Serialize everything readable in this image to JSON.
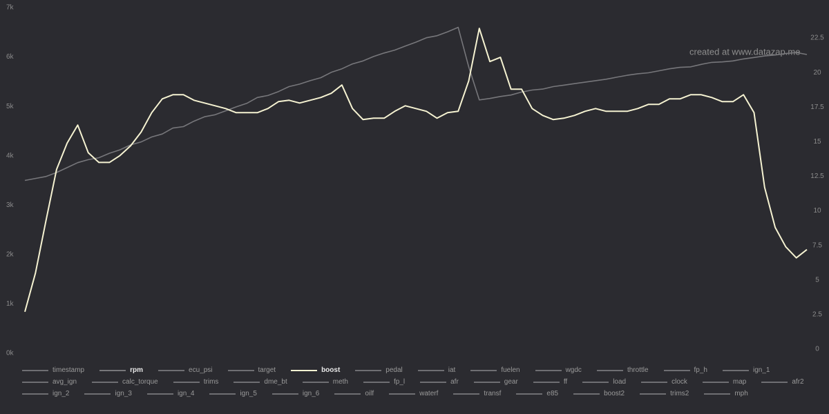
{
  "chart_data": {
    "type": "line",
    "watermark": "created at www.datazap.me",
    "ylim": [
      0,
      7000
    ],
    "yticks": [
      {
        "value": 0,
        "label": "0k"
      },
      {
        "value": 1000,
        "label": "1k"
      },
      {
        "value": 2000,
        "label": "2k"
      },
      {
        "value": 3000,
        "label": "3k"
      },
      {
        "value": 4000,
        "label": "4k"
      },
      {
        "value": 5000,
        "label": "5k"
      },
      {
        "value": 6000,
        "label": "6k"
      },
      {
        "value": 7000,
        "label": "7k"
      }
    ],
    "y2lim": [
      -0.3,
      24.7
    ],
    "y2ticks": [
      0,
      2.5,
      5,
      7.5,
      10,
      12.5,
      15,
      17.5,
      20,
      22.5
    ],
    "series": [
      {
        "name": "timestamp"
      },
      {
        "name": "rpm",
        "color": "#77777b",
        "axis": "y",
        "values": [
          3500,
          3540,
          3580,
          3660,
          3760,
          3860,
          3920,
          3960,
          4050,
          4120,
          4220,
          4280,
          4380,
          4440,
          4560,
          4590,
          4700,
          4790,
          4830,
          4910,
          4990,
          5060,
          5180,
          5220,
          5300,
          5400,
          5450,
          5520,
          5580,
          5690,
          5760,
          5860,
          5920,
          6010,
          6080,
          6140,
          6220,
          6300,
          6390,
          6430,
          6510,
          6600,
          5800,
          5130,
          5160,
          5200,
          5230,
          5290,
          5330,
          5350,
          5400,
          5430,
          5460,
          5490,
          5520,
          5550,
          5590,
          5630,
          5660,
          5680,
          5720,
          5760,
          5790,
          5800,
          5850,
          5890,
          5900,
          5920,
          5960,
          5990,
          6020,
          6040,
          6070,
          6090,
          6050
        ]
      },
      {
        "name": "ecu_psi"
      },
      {
        "name": "target"
      },
      {
        "name": "boost",
        "color": "#f6f3d2",
        "axis": "y2",
        "values": [
          2.7,
          5.5,
          9.3,
          13.0,
          14.9,
          16.2,
          14.2,
          13.5,
          13.5,
          14.0,
          14.7,
          15.7,
          17.1,
          18.1,
          18.4,
          18.4,
          18.0,
          17.8,
          17.6,
          17.4,
          17.1,
          17.1,
          17.1,
          17.4,
          17.9,
          18.0,
          17.8,
          18.0,
          18.2,
          18.5,
          19.1,
          17.4,
          16.6,
          16.7,
          16.7,
          17.2,
          17.6,
          17.4,
          17.2,
          16.7,
          17.1,
          17.2,
          19.4,
          23.2,
          20.8,
          21.1,
          18.8,
          18.8,
          17.4,
          16.9,
          16.6,
          16.7,
          16.9,
          17.2,
          17.4,
          17.2,
          17.2,
          17.2,
          17.4,
          17.7,
          17.7,
          18.1,
          18.1,
          18.4,
          18.4,
          18.2,
          17.9,
          17.9,
          18.4,
          17.1,
          11.7,
          8.8,
          7.4,
          6.6,
          7.2
        ]
      },
      {
        "name": "pedal"
      },
      {
        "name": "iat"
      },
      {
        "name": "fuelen"
      },
      {
        "name": "wgdc"
      },
      {
        "name": "throttle"
      },
      {
        "name": "fp_h"
      },
      {
        "name": "ign_1"
      },
      {
        "name": "avg_ign"
      },
      {
        "name": "calc_torque"
      },
      {
        "name": "trims"
      },
      {
        "name": "dme_bt"
      },
      {
        "name": "meth"
      },
      {
        "name": "fp_l"
      },
      {
        "name": "afr"
      },
      {
        "name": "gear"
      },
      {
        "name": "ff"
      },
      {
        "name": "load"
      },
      {
        "name": "clock"
      },
      {
        "name": "map"
      },
      {
        "name": "afr2"
      },
      {
        "name": "ign_2"
      },
      {
        "name": "ign_3"
      },
      {
        "name": "ign_4"
      },
      {
        "name": "ign_5"
      },
      {
        "name": "ign_6"
      },
      {
        "name": "oilf"
      },
      {
        "name": "waterf"
      },
      {
        "name": "transf"
      },
      {
        "name": "e85"
      },
      {
        "name": "boost2"
      },
      {
        "name": "trims2"
      },
      {
        "name": "mph"
      }
    ]
  }
}
